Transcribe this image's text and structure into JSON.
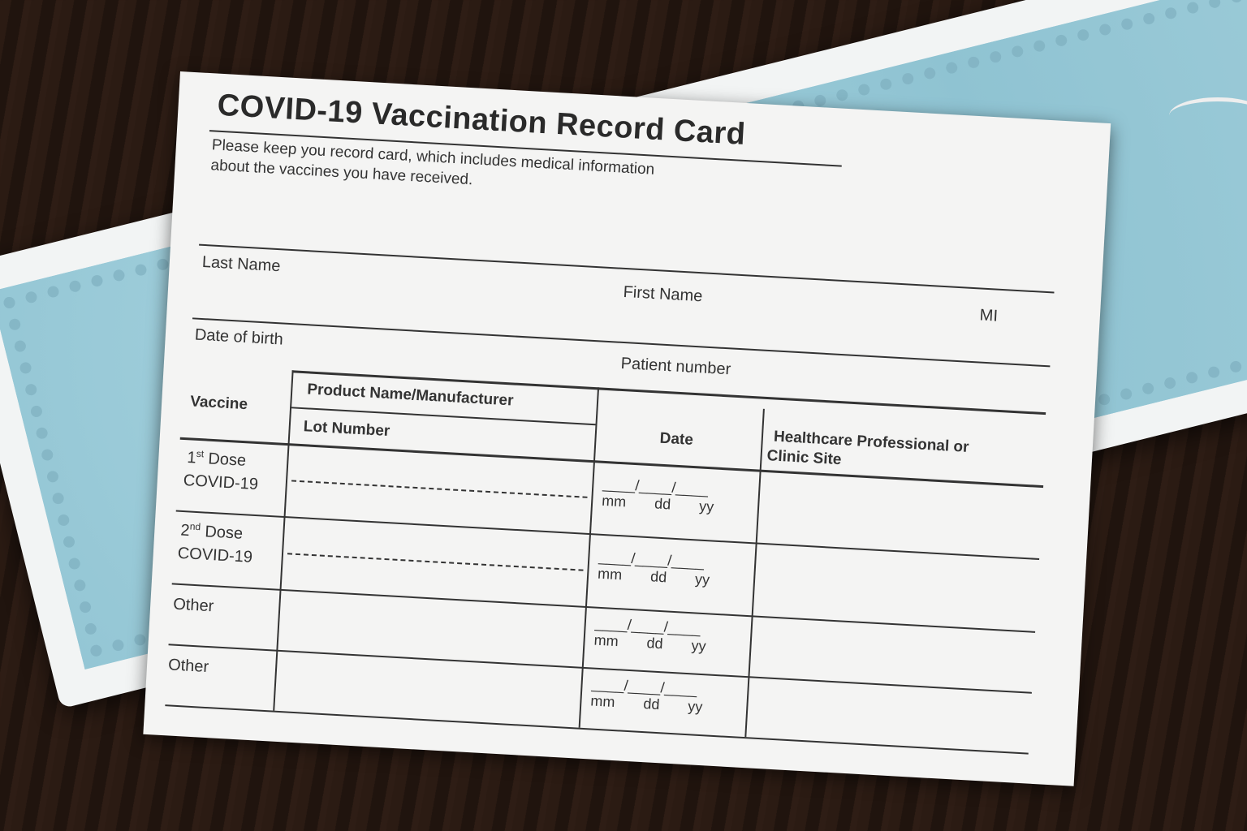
{
  "card": {
    "title": "COVID-19 Vaccination Record Card",
    "subtitle_line1": "Please keep you record card, which includes medical information",
    "subtitle_line2": "about the vaccines you have received.",
    "fields": {
      "last_name": "Last Name",
      "first_name": "First Name",
      "mi": "MI",
      "dob": "Date of birth",
      "patient_number": "Patient number"
    },
    "table": {
      "headers": {
        "vaccine": "Vaccine",
        "product": "Product Name/Manufacturer",
        "lot": "Lot Number",
        "date": "Date",
        "hcp": "Healthcare Professional  or",
        "hcp2": "Clinic Site"
      },
      "rows": [
        {
          "num": "1",
          "sup": "st",
          "label": "Dose",
          "label2": "COVID-19"
        },
        {
          "num": "2",
          "sup": "nd",
          "label": "Dose",
          "label2": "COVID-19"
        },
        {
          "label": "Other"
        },
        {
          "label": "Other"
        }
      ],
      "date_slots": "____/____/____",
      "date_units": {
        "mm": "mm",
        "dd": "dd",
        "yy": "yy"
      }
    }
  }
}
